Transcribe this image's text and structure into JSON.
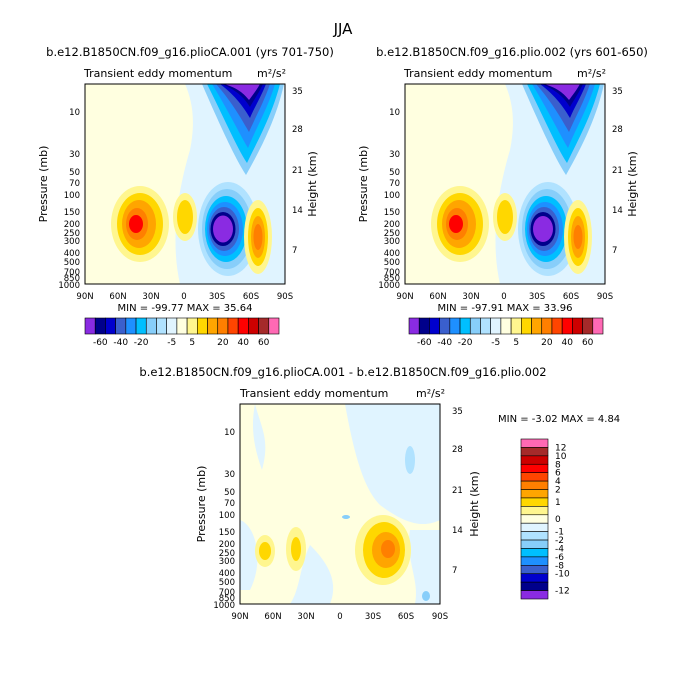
{
  "page_title": "JJA",
  "chart_data": [
    {
      "type": "contour",
      "title": "b.e12.B1850CN.f09_g16.plioCA.001 (yrs 701-750)",
      "subtitle": "Transient eddy momentum",
      "units": "m²/s²",
      "ylabel": "Pressure (mb)",
      "ylabel_right": "Height (km)",
      "x_ticks": [
        "90N",
        "60N",
        "30N",
        "0",
        "30S",
        "60S",
        "90S"
      ],
      "y_ticks": [
        "10",
        "30",
        "50",
        "70",
        "100",
        "150",
        "200",
        "250",
        "300",
        "400",
        "500",
        "700",
        "850",
        "1000"
      ],
      "y_ticks_right": [
        "35",
        "28",
        "21",
        "14",
        "7"
      ],
      "stats": "MIN = -99.77   MAX =  35.64",
      "min": -99.77,
      "max": 35.64,
      "features": [
        {
          "lat": -45,
          "p": 10,
          "value": -99
        },
        {
          "lat": -27,
          "p": 220,
          "value": -95
        },
        {
          "lat": 45,
          "p": 210,
          "value": 30
        },
        {
          "lat": 0,
          "p": 180,
          "value": 10
        },
        {
          "lat": -55,
          "p": 270,
          "value": 20
        }
      ]
    },
    {
      "type": "contour",
      "title": "b.e12.B1850CN.f09_g16.plio.002 (yrs 601-650)",
      "subtitle": "Transient eddy momentum",
      "units": "m²/s²",
      "ylabel": "Pressure (mb)",
      "ylabel_right": "Height (km)",
      "x_ticks": [
        "90N",
        "60N",
        "30N",
        "0",
        "30S",
        "60S",
        "90S"
      ],
      "y_ticks": [
        "10",
        "30",
        "50",
        "70",
        "100",
        "150",
        "200",
        "250",
        "300",
        "400",
        "500",
        "700",
        "850",
        "1000"
      ],
      "y_ticks_right": [
        "35",
        "28",
        "21",
        "14",
        "7"
      ],
      "stats": "MIN = -97.91   MAX =  33.96",
      "min": -97.91,
      "max": 33.96,
      "features": [
        {
          "lat": -45,
          "p": 10,
          "value": -97
        },
        {
          "lat": -27,
          "p": 220,
          "value": -93
        },
        {
          "lat": 45,
          "p": 210,
          "value": 29
        },
        {
          "lat": 0,
          "p": 180,
          "value": 10
        },
        {
          "lat": -55,
          "p": 270,
          "value": 20
        }
      ]
    },
    {
      "type": "contour",
      "title": "b.e12.B1850CN.f09_g16.plioCA.001 - b.e12.B1850CN.f09_g16.plio.002",
      "subtitle": "Transient eddy momentum",
      "units": "m²/s²",
      "ylabel": "Pressure (mb)",
      "ylabel_right": "Height (km)",
      "x_ticks": [
        "90N",
        "60N",
        "30N",
        "0",
        "30S",
        "60S",
        "90S"
      ],
      "y_ticks": [
        "10",
        "30",
        "50",
        "70",
        "100",
        "150",
        "200",
        "250",
        "300",
        "400",
        "500",
        "700",
        "850",
        "1000"
      ],
      "y_ticks_right": [
        "35",
        "28",
        "21",
        "14",
        "7"
      ],
      "stats": "MIN =   -3.02   MAX =   4.84",
      "min": -3.02,
      "max": 4.84,
      "features": [
        {
          "lat": -35,
          "p": 270,
          "value": 4.8
        },
        {
          "lat": 55,
          "p": 280,
          "value": 2
        },
        {
          "lat": 35,
          "p": 270,
          "value": 2
        },
        {
          "lat": -55,
          "p": 30,
          "value": -1
        }
      ]
    }
  ],
  "colorbar_top": {
    "labels": [
      "-60",
      "-40",
      "-20",
      "-5",
      "5",
      "20",
      "40",
      "60"
    ],
    "colors": [
      "#8a2be2",
      "#00008b",
      "#0000cd",
      "#3a5fcd",
      "#1e90ff",
      "#00bfff",
      "#87cefa",
      "#b0e2ff",
      "#e0f4ff",
      "#ffffe0",
      "#fff68f",
      "#ffd700",
      "#ffa500",
      "#ff7f00",
      "#ff4500",
      "#ff0000",
      "#cd0000",
      "#a52a2a",
      "#ff69b4"
    ]
  },
  "colorbar_bottom": {
    "labels": [
      "12",
      "10",
      "8",
      "6",
      "4",
      "2",
      "1",
      "0",
      "-1",
      "-2",
      "-4",
      "-6",
      "-8",
      "-10",
      "-12"
    ],
    "colors": [
      "#ff69b4",
      "#a52a2a",
      "#cd0000",
      "#ff0000",
      "#ff4500",
      "#ff7f00",
      "#ffa500",
      "#ffd700",
      "#fff68f",
      "#ffffe0",
      "#e0f4ff",
      "#b0e2ff",
      "#87cefa",
      "#00bfff",
      "#1e90ff",
      "#3a5fcd",
      "#0000cd",
      "#00008b",
      "#8a2be2"
    ]
  }
}
